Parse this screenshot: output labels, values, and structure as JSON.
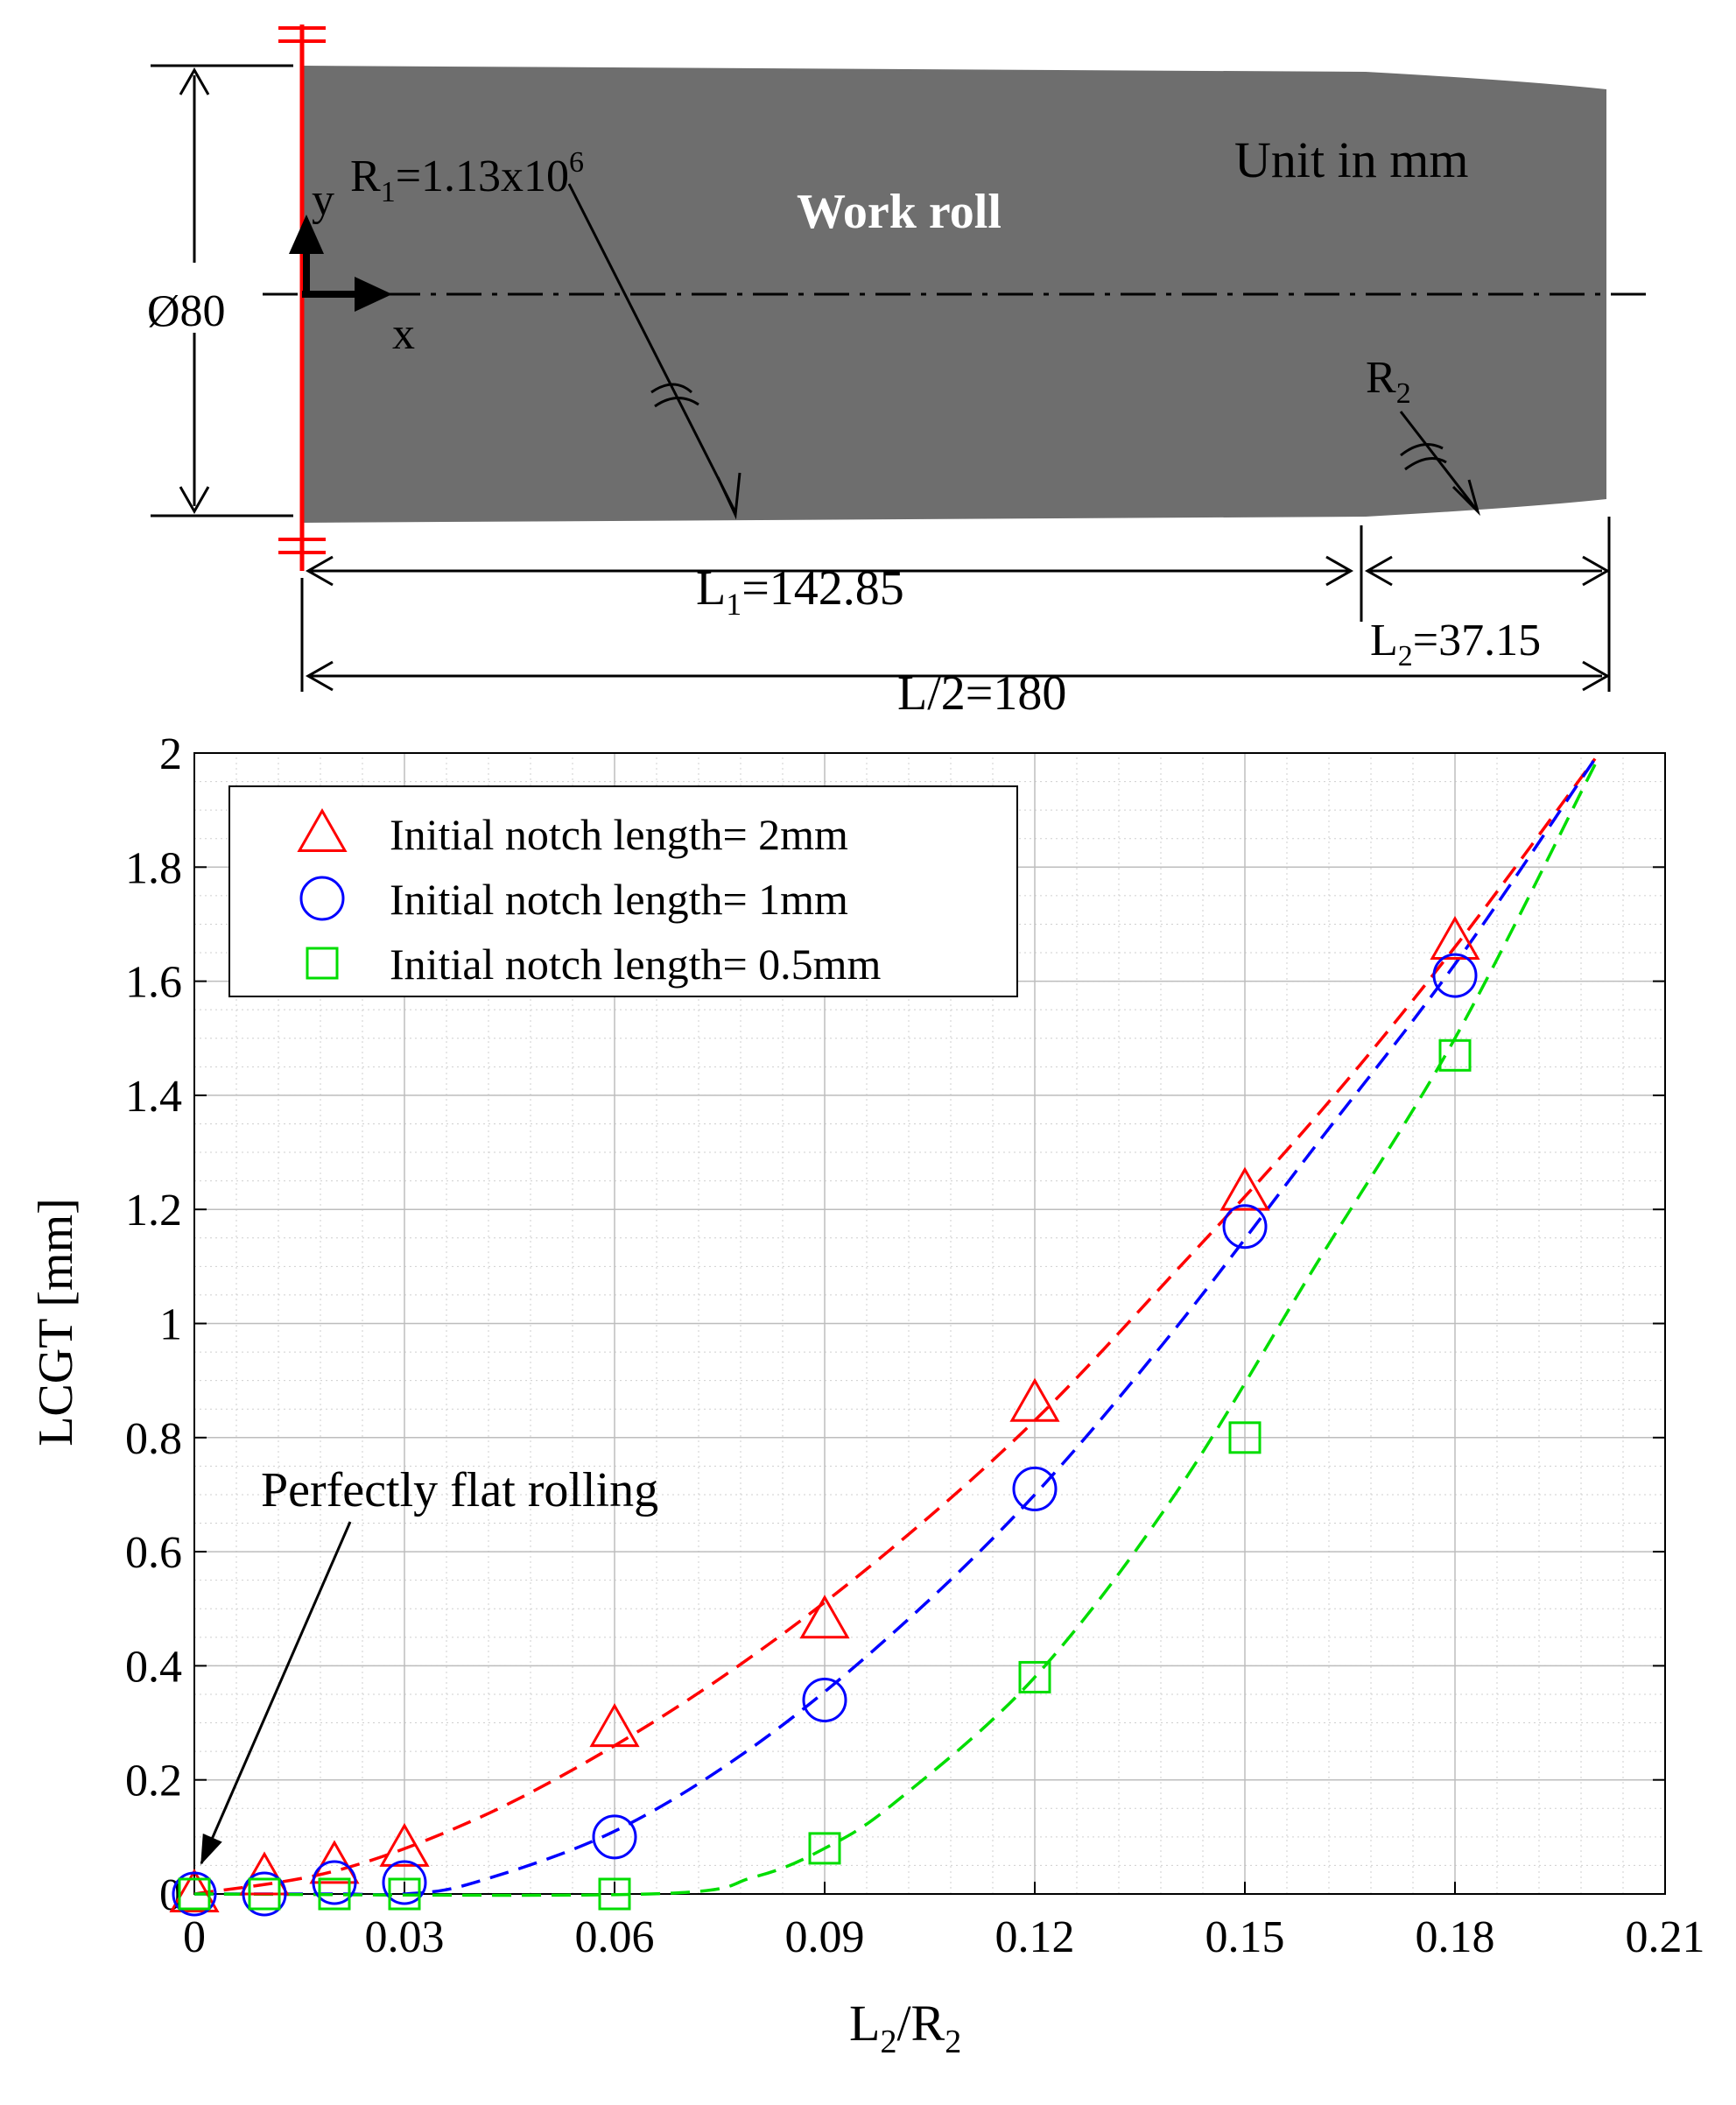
{
  "diagram": {
    "roll_label": "Work roll",
    "unit_label": "Unit in mm",
    "diameter_label": "Ø80",
    "axis_y_label": "y",
    "axis_x_label": "x",
    "r1_label": "R",
    "r1_subscript": "1",
    "r1_value": "=1.13x10",
    "r1_exponent": "6",
    "r2_label": "R",
    "r2_subscript": "2",
    "l1_label": "L",
    "l1_subscript": "1",
    "l1_value": "=142.85",
    "l2_label": "L",
    "l2_subscript": "2",
    "l2_value": "=37.15",
    "half_length_label": "L/2=180",
    "colors": {
      "roll_fill": "#6e6e6e",
      "fixed_edge": "#ff0000",
      "roll_text": "#ffffff"
    }
  },
  "chart_data": {
    "type": "scatter",
    "xlabel_main": "L",
    "xlabel_sub1": "2",
    "xlabel_mid": "/R",
    "xlabel_sub2": "2",
    "ylabel": "LCGT [mm]",
    "xlim": [
      0,
      0.21
    ],
    "ylim": [
      0,
      2
    ],
    "grid": true,
    "legend_placement": "top-left",
    "x_ticks": [
      0,
      0.03,
      0.06,
      0.09,
      0.12,
      0.15,
      0.18,
      0.21
    ],
    "x_tick_labels": [
      "0",
      "0.03",
      "0.06",
      "0.09",
      "0.12",
      "0.15",
      "0.18",
      "0.21"
    ],
    "y_ticks": [
      0,
      0.2,
      0.4,
      0.6,
      0.8,
      1,
      1.2,
      1.4,
      1.6,
      1.8,
      2
    ],
    "y_tick_labels": [
      "0",
      "0.2",
      "0.4",
      "0.6",
      "0.8",
      "1",
      "1.2",
      "1.4",
      "1.6",
      "1.8",
      "2"
    ],
    "annotation": {
      "text": "Perfectly flat rolling",
      "x": 0,
      "y": 0
    },
    "series": [
      {
        "name": "Initial notch length= 2mm",
        "marker": "triangle",
        "color": "#ff0000",
        "x": [
          0,
          0.01,
          0.02,
          0.03,
          0.06,
          0.09,
          0.12,
          0.15,
          0.18
        ],
        "y": [
          0,
          0.03,
          0.05,
          0.08,
          0.29,
          0.48,
          0.86,
          1.23,
          1.67
        ],
        "fit_x": [
          0,
          0.02,
          0.04,
          0.06,
          0.08,
          0.1,
          0.12,
          0.14,
          0.16,
          0.18,
          0.2
        ],
        "fit_y": [
          0,
          0.04,
          0.13,
          0.26,
          0.42,
          0.61,
          0.83,
          1.09,
          1.36,
          1.66,
          1.99
        ]
      },
      {
        "name": "Initial notch length= 1mm",
        "marker": "circle",
        "color": "#0000ff",
        "x": [
          0,
          0.01,
          0.02,
          0.03,
          0.06,
          0.09,
          0.12,
          0.15,
          0.18
        ],
        "y": [
          0,
          0,
          0.02,
          0.02,
          0.1,
          0.34,
          0.71,
          1.17,
          1.61
        ],
        "fit_x": [
          0,
          0.02,
          0.03,
          0.04,
          0.06,
          0.08,
          0.1,
          0.12,
          0.14,
          0.16,
          0.18,
          0.2
        ],
        "fit_y": [
          0,
          0,
          0,
          0.02,
          0.11,
          0.26,
          0.46,
          0.7,
          0.99,
          1.31,
          1.63,
          1.99
        ]
      },
      {
        "name": "Initial notch length= 0.5mm",
        "marker": "square",
        "color": "#00dd00",
        "x": [
          0,
          0.01,
          0.02,
          0.03,
          0.06,
          0.09,
          0.12,
          0.15,
          0.18
        ],
        "y": [
          0,
          0,
          0,
          0,
          0,
          0.08,
          0.38,
          0.8,
          1.47
        ],
        "fit_x": [
          0,
          0.065,
          0.08,
          0.09,
          0.1,
          0.12,
          0.14,
          0.16,
          0.18,
          0.2
        ],
        "fit_y": [
          0,
          0,
          0.03,
          0.08,
          0.16,
          0.38,
          0.7,
          1.1,
          1.5,
          1.98
        ]
      }
    ]
  }
}
